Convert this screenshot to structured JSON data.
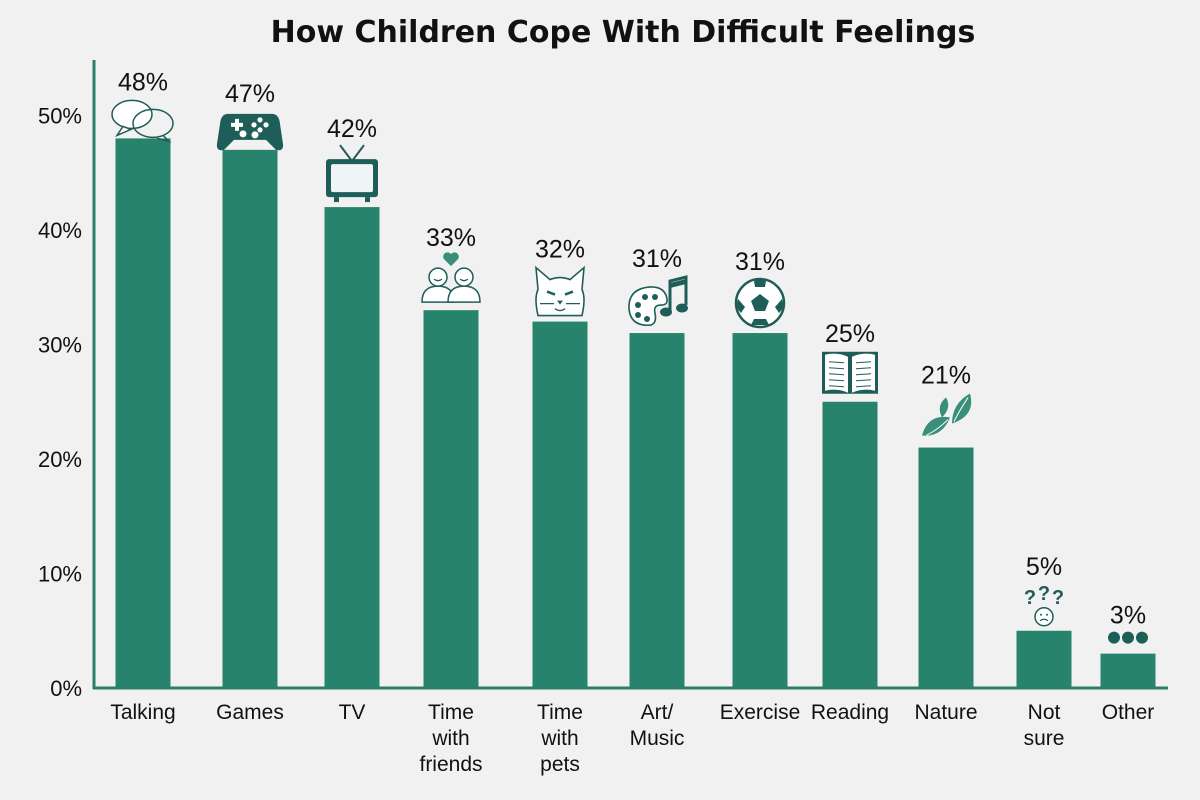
{
  "chart_data": {
    "type": "bar",
    "title": "How Children Cope With Difficult Feelings",
    "xlabel": "",
    "ylabel": "",
    "ylim": [
      0,
      53
    ],
    "y_ticks": [
      "0%",
      "10%",
      "20%",
      "30%",
      "40%",
      "50%"
    ],
    "y_tick_values": [
      0,
      10,
      20,
      30,
      40,
      50
    ],
    "grid": false,
    "bar_color": "#27836b",
    "icon_color": "#1f5e58",
    "categories": [
      {
        "label": [
          "Talking"
        ],
        "value": 48,
        "data_label": "48%",
        "icon": "speech-bubbles-icon"
      },
      {
        "label": [
          "Games"
        ],
        "value": 47,
        "data_label": "47%",
        "icon": "game-controller-icon"
      },
      {
        "label": [
          "TV"
        ],
        "value": 42,
        "data_label": "42%",
        "icon": "tv-icon"
      },
      {
        "label": [
          "Time",
          "with",
          "friends"
        ],
        "value": 33,
        "data_label": "33%",
        "icon": "friends-icon"
      },
      {
        "label": [
          "Time",
          "with",
          "pets"
        ],
        "value": 32,
        "data_label": "32%",
        "icon": "cat-icon"
      },
      {
        "label": [
          "Art/",
          "Music"
        ],
        "value": 31,
        "data_label": "31%",
        "icon": "palette-music-icon"
      },
      {
        "label": [
          "Exercise"
        ],
        "value": 31,
        "data_label": "31%",
        "icon": "soccer-ball-icon"
      },
      {
        "label": [
          "Reading"
        ],
        "value": 25,
        "data_label": "25%",
        "icon": "book-icon"
      },
      {
        "label": [
          "Nature"
        ],
        "value": 21,
        "data_label": "21%",
        "icon": "leaves-icon"
      },
      {
        "label": [
          "Not",
          "sure"
        ],
        "value": 5,
        "data_label": "5%",
        "icon": "question-face-icon"
      },
      {
        "label": [
          "Other"
        ],
        "value": 3,
        "data_label": "3%",
        "icon": "dots-icon"
      }
    ]
  }
}
